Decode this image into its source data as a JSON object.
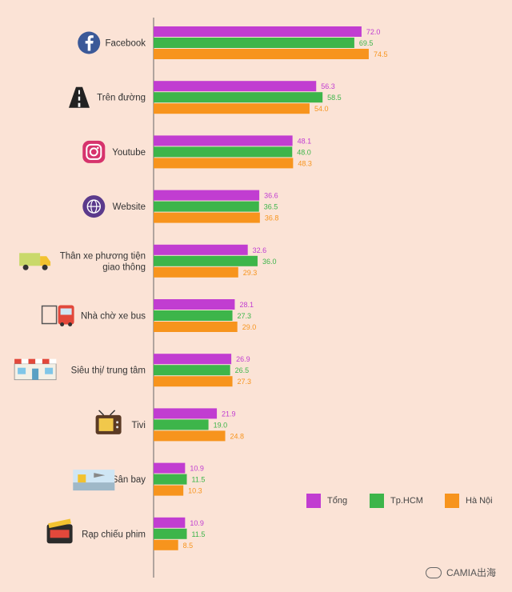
{
  "chart_data": {
    "type": "bar",
    "orientation": "horizontal",
    "categories": [
      "Facebook",
      "Trên đường",
      "Youtube",
      "Website",
      "Thân xe phương tiện giao thông",
      "Nhà chờ xe bus",
      "Siêu thị/ trung tâm",
      "Tivi",
      "Sân bay",
      "Rạp chiếu phim"
    ],
    "category_icons": [
      "facebook-icon",
      "road-icon",
      "instagram-icon",
      "globe-icon",
      "truck-icon",
      "bus-stop-icon",
      "supermarket-icon",
      "tv-icon",
      "airport-icon",
      "cinema-icon"
    ],
    "series": [
      {
        "name": "Tổng",
        "color": "#c13dd1",
        "values": [
          72.0,
          56.3,
          48.1,
          36.6,
          32.6,
          28.1,
          26.9,
          21.9,
          10.9,
          10.9
        ]
      },
      {
        "name": "Tp.HCM",
        "color": "#3db54a",
        "values": [
          69.5,
          58.5,
          48.0,
          36.5,
          36.0,
          27.3,
          26.5,
          19.0,
          11.5,
          11.5
        ]
      },
      {
        "name": "Hà Nội",
        "color": "#f7941d",
        "values": [
          74.5,
          54.0,
          48.3,
          36.8,
          29.3,
          29.0,
          27.3,
          24.8,
          10.3,
          8.5
        ]
      }
    ],
    "value_labels": [
      [
        "72.0",
        "69.5",
        "74.5"
      ],
      [
        "56.3",
        "58.5",
        "54.0"
      ],
      [
        "48.1",
        "48.0",
        "48.3"
      ],
      [
        "36.6",
        "36.5",
        "36.8"
      ],
      [
        "32.6",
        "36.0",
        "29.3"
      ],
      [
        "28.1",
        "27.3",
        "29.0"
      ],
      [
        "26.9",
        "26.5",
        "27.3"
      ],
      [
        "21.9",
        "19.0",
        "24.8"
      ],
      [
        "10.9",
        "11.5",
        "10.3"
      ],
      [
        "10.9",
        "11.5",
        "8.5"
      ]
    ],
    "xlim": [
      0,
      80
    ],
    "grid": false,
    "legend_position": "bottom-right"
  },
  "watermark": "CAMIA出海",
  "background_color": "#fbe3d6"
}
